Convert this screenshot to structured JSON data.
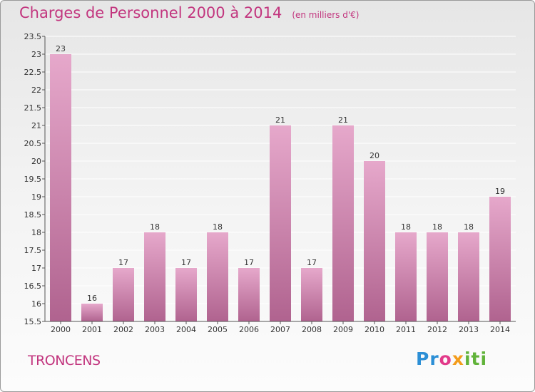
{
  "header": {
    "title": "Charges de Personnel 2000 à 2014",
    "unit": "(en milliers d'€)"
  },
  "footer": {
    "commune": "TRONCENS",
    "logo": [
      "Pr",
      "o",
      "x",
      "iti"
    ]
  },
  "colors": {
    "bar_light": "#e6a8cb",
    "bar_dark": "#b0638f",
    "title": "#c2357e",
    "grid": "#ffffff",
    "axis": "#555555"
  },
  "chart_data": {
    "type": "bar",
    "categories": [
      "2000",
      "2001",
      "2002",
      "2003",
      "2004",
      "2005",
      "2006",
      "2007",
      "2008",
      "2009",
      "2010",
      "2011",
      "2012",
      "2013",
      "2014"
    ],
    "values": [
      23,
      16,
      17,
      18,
      17,
      18,
      17,
      21,
      17,
      21,
      20,
      18,
      18,
      18,
      19
    ],
    "data_labels": [
      "23",
      "16",
      "17",
      "18",
      "17",
      "18",
      "17",
      "21",
      "17",
      "21",
      "20",
      "18",
      "18",
      "18",
      "19"
    ],
    "title": "Charges de Personnel 2000 à 2014",
    "xlabel": "",
    "ylabel": "",
    "ylim": [
      15.5,
      23.5
    ],
    "yticks": [
      "15.5",
      "16",
      "16.5",
      "17",
      "17.5",
      "18",
      "18.5",
      "19",
      "19.5",
      "20",
      "20.5",
      "21",
      "21.5",
      "22",
      "22.5",
      "23",
      "23.5"
    ],
    "grid": true,
    "legend": "none"
  }
}
